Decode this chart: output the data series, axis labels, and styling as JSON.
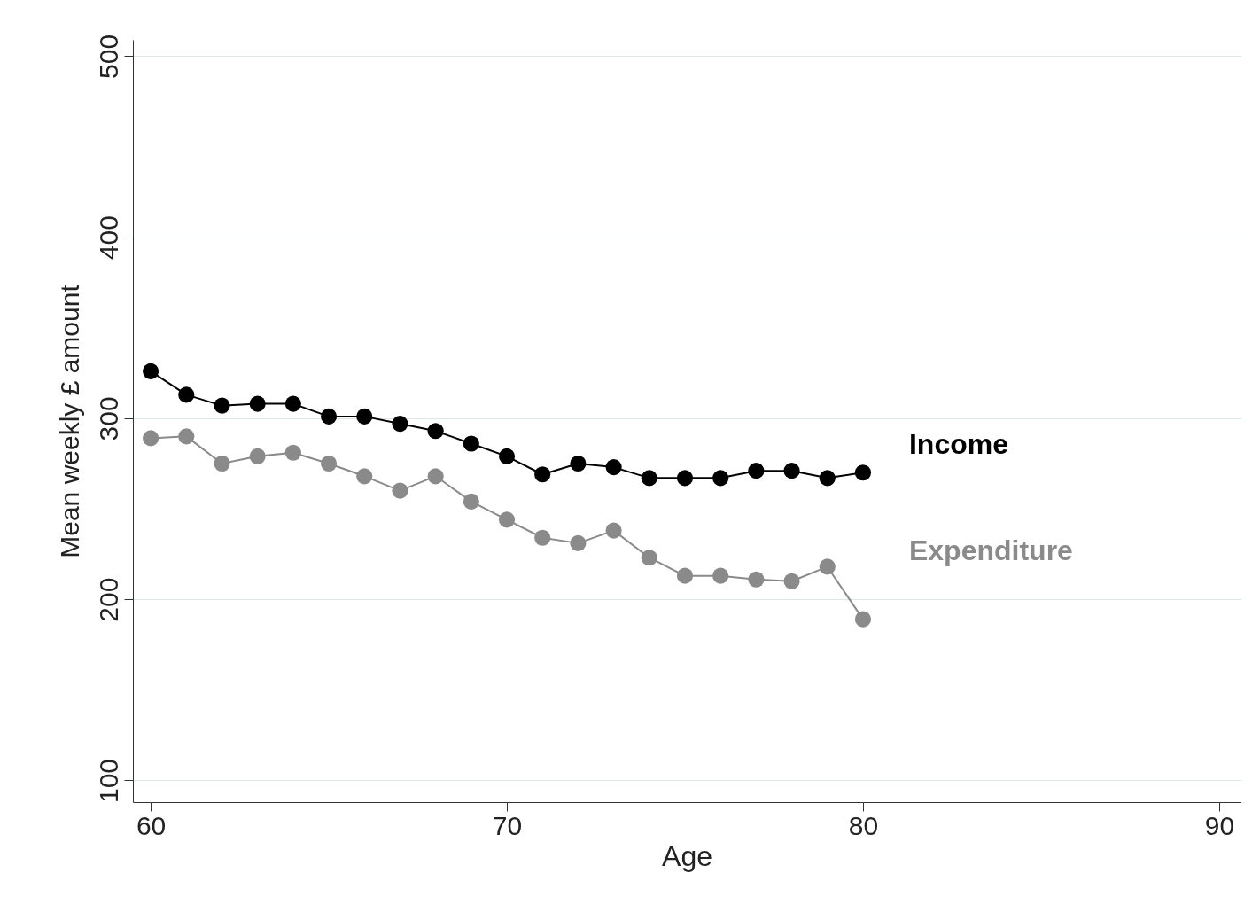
{
  "chart_data": {
    "type": "line",
    "xlabel": "Age",
    "ylabel": "Mean weekly £ amount",
    "x": [
      60,
      61,
      62,
      63,
      64,
      65,
      66,
      67,
      68,
      69,
      70,
      71,
      72,
      73,
      74,
      75,
      76,
      77,
      78,
      79,
      80
    ],
    "series": [
      {
        "name": "Income",
        "color": "#000000",
        "values": [
          326,
          313,
          307,
          308,
          308,
          301,
          301,
          297,
          293,
          286,
          279,
          269,
          275,
          273,
          267,
          267,
          267,
          271,
          271,
          267,
          270
        ]
      },
      {
        "name": "Expenditure",
        "color": "#8a8a8a",
        "values": [
          289,
          290,
          275,
          279,
          281,
          275,
          268,
          260,
          268,
          254,
          244,
          234,
          231,
          238,
          223,
          213,
          213,
          211,
          210,
          218,
          189
        ]
      }
    ],
    "xlim": [
      59.5,
      90.6
    ],
    "xticks": [
      60,
      70,
      80,
      90
    ],
    "ylim": [
      88,
      509
    ],
    "yticks": [
      100,
      200,
      300,
      400,
      500
    ],
    "grid": "y",
    "legend": false,
    "marker": "circle",
    "line_style": "solid"
  }
}
